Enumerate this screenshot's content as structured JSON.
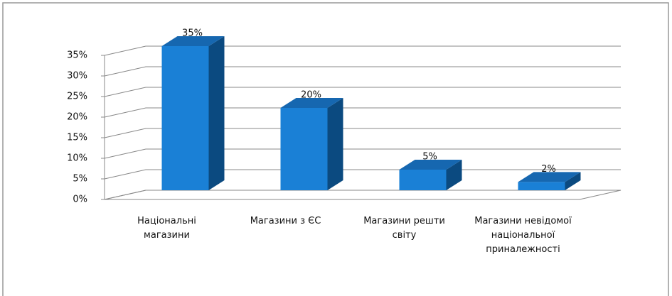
{
  "chart_data": {
    "type": "bar3d",
    "categories": [
      "Національні магазини",
      "Магазини з ЄС",
      "Магазини решти світу",
      "Магазини невідомої національної приналежності"
    ],
    "values": [
      35,
      20,
      5,
      2
    ],
    "value_labels": [
      "35%",
      "20%",
      "5%",
      "2%"
    ],
    "color": "#1a80d6",
    "ylim": [
      0,
      35
    ],
    "yticks": [
      {
        "value": 0,
        "label": "0%"
      },
      {
        "value": 5,
        "label": "5%"
      },
      {
        "value": 10,
        "label": "10%"
      },
      {
        "value": 15,
        "label": "15%"
      },
      {
        "value": 20,
        "label": "20%"
      },
      {
        "value": 25,
        "label": "25%"
      },
      {
        "value": 30,
        "label": "30%"
      },
      {
        "value": 35,
        "label": "35%"
      }
    ],
    "grid": true
  }
}
